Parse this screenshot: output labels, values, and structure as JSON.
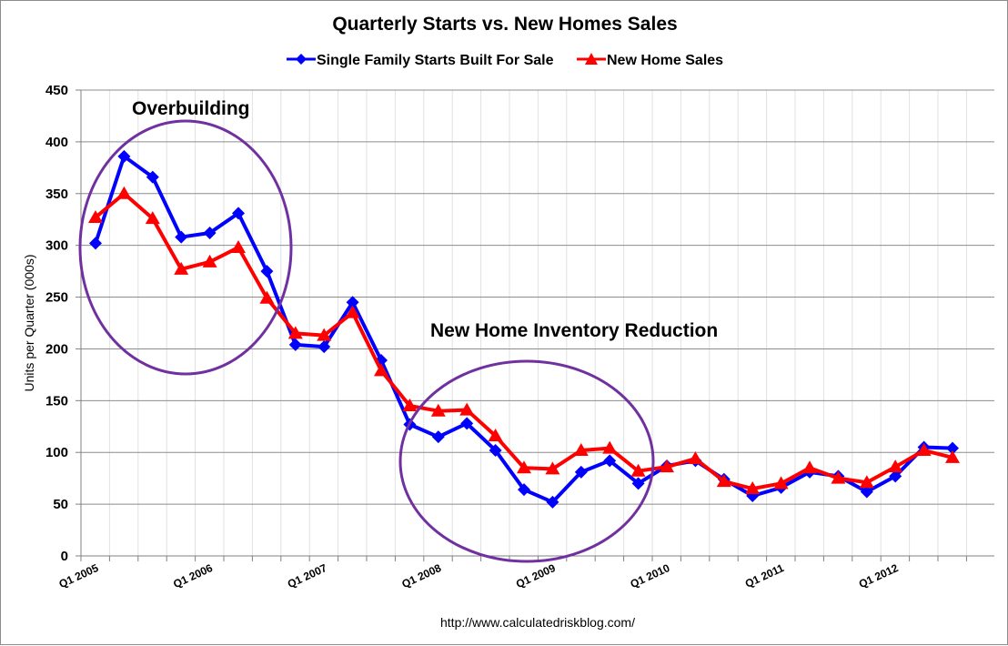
{
  "chart_data": {
    "type": "line",
    "title": "Quarterly Starts vs. New Homes Sales",
    "ylabel": "Units per Quarter (000s)",
    "xlabel": "",
    "ylim": [
      0,
      450
    ],
    "yticks": [
      "0",
      "50",
      "100",
      "150",
      "200",
      "250",
      "300",
      "350",
      "400",
      "450"
    ],
    "grid": "horizontal",
    "legend_position": "top-center",
    "categories": [
      "Q1 2005",
      "Q2 2005",
      "Q3 2005",
      "Q4 2005",
      "Q1 2006",
      "Q2 2006",
      "Q3 2006",
      "Q4 2006",
      "Q1 2007",
      "Q2 2007",
      "Q3 2007",
      "Q4 2007",
      "Q1 2008",
      "Q2 2008",
      "Q3 2008",
      "Q4 2008",
      "Q1 2009",
      "Q2 2009",
      "Q3 2009",
      "Q4 2009",
      "Q1 2010",
      "Q2 2010",
      "Q3 2010",
      "Q4 2010",
      "Q1 2011",
      "Q2 2011",
      "Q3 2011",
      "Q4 2011",
      "Q1 2012",
      "Q2 2012",
      "Q3 2012"
    ],
    "xtick_labels": [
      "Q1 2005",
      "Q1 2006",
      "Q1 2007",
      "Q1 2008",
      "Q1 2009",
      "Q1 2010",
      "Q1 2011",
      "Q1 2012"
    ],
    "series": [
      {
        "name": "Single Family Starts Built For Sale",
        "color": "#0000ff",
        "marker": "diamond",
        "values": [
          302,
          386,
          366,
          308,
          312,
          331,
          275,
          204,
          202,
          245,
          189,
          127,
          115,
          128,
          102,
          64,
          52,
          81,
          92,
          70,
          87,
          92,
          74,
          58,
          66,
          81,
          77,
          62,
          77,
          105,
          104
        ]
      },
      {
        "name": "New Home Sales",
        "color": "#ff0000",
        "marker": "triangle",
        "values": [
          327,
          350,
          326,
          277,
          284,
          298,
          249,
          215,
          213,
          235,
          179,
          145,
          140,
          141,
          116,
          85,
          84,
          102,
          104,
          82,
          86,
          94,
          72,
          65,
          70,
          85,
          75,
          71,
          86,
          102,
          95
        ]
      }
    ],
    "annotations": [
      {
        "text": "Overbuilding"
      },
      {
        "text": "New Home Inventory Reduction"
      }
    ],
    "source": "http://www.calculatedriskblog.com/"
  }
}
